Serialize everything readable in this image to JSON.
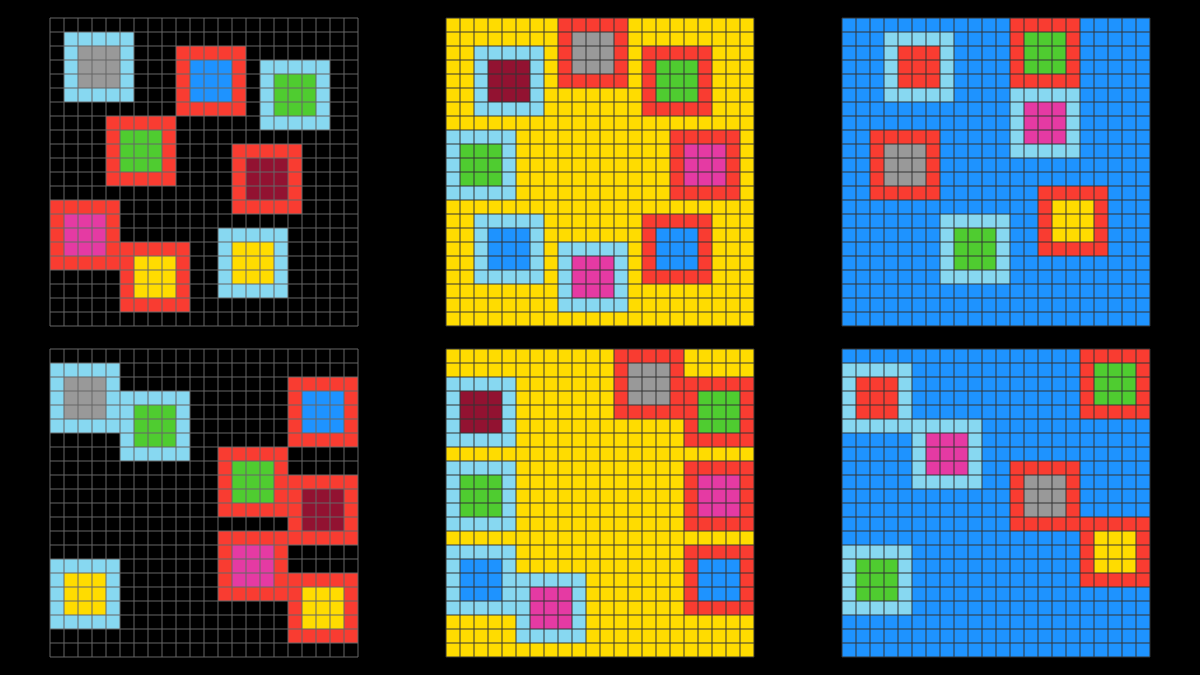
{
  "grids": [
    {
      "rows": 22,
      "cols": 22,
      "background": "#000000",
      "line_color": "#666666",
      "squares": [
        {
          "row": 1,
          "col": 1,
          "border": "#87d8f1",
          "inner": "#999999"
        },
        {
          "row": 2,
          "col": 9,
          "border": "#f93c31",
          "inner": "#1e93ff"
        },
        {
          "row": 3,
          "col": 15,
          "border": "#87d8f1",
          "inner": "#4fcc30"
        },
        {
          "row": 7,
          "col": 4,
          "border": "#f93c31",
          "inner": "#4fcc30"
        },
        {
          "row": 9,
          "col": 13,
          "border": "#f93c31",
          "inner": "#921231"
        },
        {
          "row": 13,
          "col": 0,
          "border": "#f93c31",
          "inner": "#e53aa3"
        },
        {
          "row": 16,
          "col": 5,
          "border": "#f93c31",
          "inner": "#ffdc00"
        },
        {
          "row": 15,
          "col": 12,
          "border": "#87d8f1",
          "inner": "#ffdc00"
        }
      ]
    },
    {
      "rows": 22,
      "cols": 22,
      "background": "#ffdc00",
      "line_color": "#333333",
      "squares": [
        {
          "row": 2,
          "col": 2,
          "border": "#87d8f1",
          "inner": "#921231"
        },
        {
          "row": 0,
          "col": 8,
          "border": "#f93c31",
          "inner": "#999999"
        },
        {
          "row": 2,
          "col": 14,
          "border": "#f93c31",
          "inner": "#4fcc30"
        },
        {
          "row": 8,
          "col": 0,
          "border": "#87d8f1",
          "inner": "#4fcc30"
        },
        {
          "row": 8,
          "col": 16,
          "border": "#f93c31",
          "inner": "#e53aa3"
        },
        {
          "row": 14,
          "col": 2,
          "border": "#87d8f1",
          "inner": "#1e93ff"
        },
        {
          "row": 16,
          "col": 8,
          "border": "#87d8f1",
          "inner": "#e53aa3"
        },
        {
          "row": 14,
          "col": 14,
          "border": "#f93c31",
          "inner": "#1e93ff"
        }
      ]
    },
    {
      "rows": 22,
      "cols": 22,
      "background": "#1e93ff",
      "line_color": "#333333",
      "squares": [
        {
          "row": 1,
          "col": 3,
          "border": "#87d8f1",
          "inner": "#f93c31"
        },
        {
          "row": 0,
          "col": 12,
          "border": "#f93c31",
          "inner": "#4fcc30"
        },
        {
          "row": 5,
          "col": 12,
          "border": "#87d8f1",
          "inner": "#e53aa3"
        },
        {
          "row": 8,
          "col": 2,
          "border": "#f93c31",
          "inner": "#999999"
        },
        {
          "row": 12,
          "col": 14,
          "border": "#f93c31",
          "inner": "#ffdc00"
        },
        {
          "row": 14,
          "col": 7,
          "border": "#87d8f1",
          "inner": "#4fcc30"
        }
      ]
    },
    {
      "rows": 22,
      "cols": 22,
      "background": "#000000",
      "line_color": "#666666",
      "squares": [
        {
          "row": 1,
          "col": 0,
          "border": "#87d8f1",
          "inner": "#999999"
        },
        {
          "row": 3,
          "col": 5,
          "border": "#87d8f1",
          "inner": "#4fcc30"
        },
        {
          "row": 2,
          "col": 17,
          "border": "#f93c31",
          "inner": "#1e93ff"
        },
        {
          "row": 7,
          "col": 12,
          "border": "#f93c31",
          "inner": "#4fcc30"
        },
        {
          "row": 9,
          "col": 17,
          "border": "#f93c31",
          "inner": "#921231"
        },
        {
          "row": 13,
          "col": 12,
          "border": "#f93c31",
          "inner": "#e53aa3"
        },
        {
          "row": 16,
          "col": 17,
          "border": "#f93c31",
          "inner": "#ffdc00"
        },
        {
          "row": 15,
          "col": 0,
          "border": "#87d8f1",
          "inner": "#ffdc00"
        }
      ]
    },
    {
      "rows": 22,
      "cols": 22,
      "background": "#ffdc00",
      "line_color": "#333333",
      "squares": [
        {
          "row": 2,
          "col": 0,
          "border": "#87d8f1",
          "inner": "#921231"
        },
        {
          "row": 0,
          "col": 12,
          "border": "#f93c31",
          "inner": "#999999"
        },
        {
          "row": 2,
          "col": 17,
          "border": "#f93c31",
          "inner": "#4fcc30"
        },
        {
          "row": 8,
          "col": 0,
          "border": "#87d8f1",
          "inner": "#4fcc30"
        },
        {
          "row": 8,
          "col": 17,
          "border": "#f93c31",
          "inner": "#e53aa3"
        },
        {
          "row": 14,
          "col": 0,
          "border": "#87d8f1",
          "inner": "#1e93ff"
        },
        {
          "row": 16,
          "col": 5,
          "border": "#87d8f1",
          "inner": "#e53aa3"
        },
        {
          "row": 14,
          "col": 17,
          "border": "#f93c31",
          "inner": "#1e93ff"
        }
      ]
    },
    {
      "rows": 22,
      "cols": 22,
      "background": "#1e93ff",
      "line_color": "#333333",
      "squares": [
        {
          "row": 1,
          "col": 0,
          "border": "#87d8f1",
          "inner": "#f93c31"
        },
        {
          "row": 0,
          "col": 17,
          "border": "#f93c31",
          "inner": "#4fcc30"
        },
        {
          "row": 5,
          "col": 5,
          "border": "#87d8f1",
          "inner": "#e53aa3"
        },
        {
          "row": 8,
          "col": 12,
          "border": "#f93c31",
          "inner": "#999999"
        },
        {
          "row": 12,
          "col": 17,
          "border": "#f93c31",
          "inner": "#ffdc00"
        },
        {
          "row": 14,
          "col": 0,
          "border": "#87d8f1",
          "inner": "#4fcc30"
        }
      ]
    }
  ]
}
